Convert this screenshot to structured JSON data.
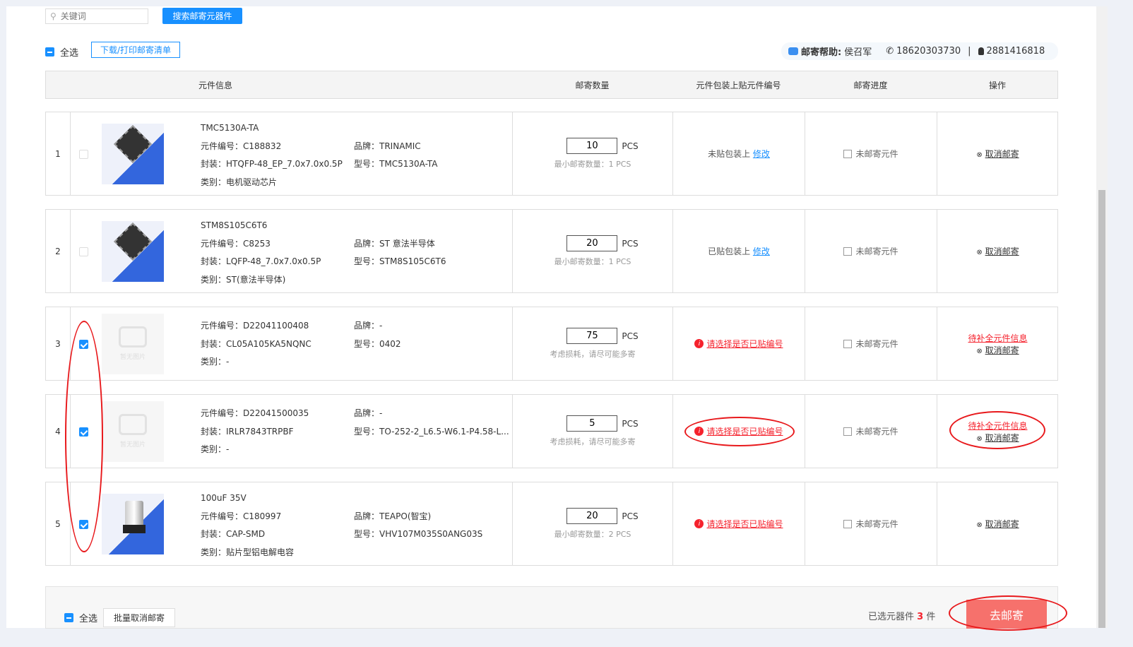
{
  "search": {
    "placeholder": "关键词",
    "button": "搜索邮寄元器件"
  },
  "toolbar": {
    "select_all": "全选",
    "download": "下载/打印邮寄清单"
  },
  "help": {
    "label": "邮寄帮助:",
    "name": "侯召军",
    "phone": "18620303730",
    "qq": "2881416818"
  },
  "headers": {
    "info": "元件信息",
    "qty": "邮寄数量",
    "label": "元件包装上贴元件编号",
    "progress": "邮寄进度",
    "ops": "操作"
  },
  "labels": {
    "code": "元件编号：",
    "pkg": "封装：",
    "cat": "类别：",
    "brand": "品牌：",
    "model": "型号：",
    "unit": "PCS",
    "no_image": "暂无图片",
    "edit": "修改",
    "cancel": "取消邮寄",
    "complete": "待补全元件信息",
    "choose": "请选择是否已贴编号"
  },
  "rows": [
    {
      "index": "1",
      "checked": false,
      "title": "TMC5130A-TA",
      "code": "C188832",
      "pkg": "HTQFP-48_EP_7.0x7.0x0.5P",
      "cat": "电机驱动芯片",
      "brand": "TRINAMIC",
      "model": "TMC5130A-TA",
      "qty": "10",
      "hint": "最小邮寄数量：1 PCS",
      "label_status": "未贴包装上",
      "label_error": false,
      "progress": "未邮寄元件",
      "needs_info": false,
      "image": "ic"
    },
    {
      "index": "2",
      "checked": false,
      "title": "STM8S105C6T6",
      "code": "C8253",
      "pkg": "LQFP-48_7.0x7.0x0.5P",
      "cat": "ST(意法半导体)",
      "brand": "ST 意法半导体",
      "model": "STM8S105C6T6",
      "qty": "20",
      "hint": "最小邮寄数量：1 PCS",
      "label_status": "已贴包装上",
      "label_error": false,
      "progress": "未邮寄元件",
      "needs_info": false,
      "image": "ic"
    },
    {
      "index": "3",
      "checked": true,
      "title": "",
      "code": "D22041100408",
      "pkg": "CL05A105KA5NQNC",
      "cat": "-",
      "brand": "-",
      "model": "0402",
      "qty": "75",
      "hint": "考虑损耗，请尽可能多寄",
      "label_error": true,
      "progress": "未邮寄元件",
      "needs_info": true,
      "image": "none"
    },
    {
      "index": "4",
      "checked": true,
      "title": "",
      "code": "D22041500035",
      "pkg": "IRLR7843TRPBF",
      "cat": "-",
      "brand": "-",
      "model": "TO-252-2_L6.5-W6.1-P4.58-L...",
      "qty": "5",
      "hint": "考虑损耗，请尽可能多寄",
      "label_error": true,
      "progress": "未邮寄元件",
      "needs_info": true,
      "image": "none"
    },
    {
      "index": "5",
      "checked": true,
      "title": "100uF 35V",
      "code": "C180997",
      "pkg": "CAP-SMD",
      "cat": "贴片型铝电解电容",
      "brand": "TEAPO(智宝)",
      "model": "VHV107M035S0ANG03S",
      "qty": "20",
      "hint": "最小邮寄数量：2 PCS",
      "label_error": true,
      "progress": "未邮寄元件",
      "needs_info": false,
      "image": "cap"
    }
  ],
  "footer": {
    "select_all": "全选",
    "batch_cancel": "批量取消邮寄",
    "selected_prefix": "已选元器件",
    "selected_count": "3",
    "selected_suffix": "件",
    "go": "去邮寄"
  },
  "colors": {
    "accent": "#1890ff",
    "error": "#f5222d",
    "go_button": "#f6716c",
    "annotation": "#e8191c"
  }
}
